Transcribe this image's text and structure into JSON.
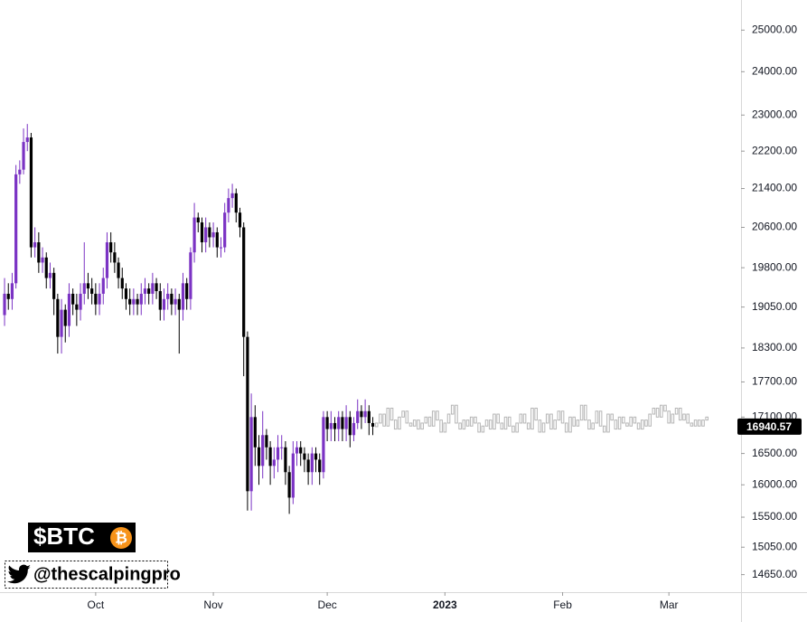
{
  "chart_data": {
    "type": "candlestick",
    "log": true,
    "up_color": "#7b33c4",
    "down_color": "#000000",
    "projection_color": "#b5b5b5",
    "ylim": [
      14400,
      25750
    ],
    "yticks": [
      {
        "value": 25000,
        "label": "25000.00"
      },
      {
        "value": 24000,
        "label": "24000.00"
      },
      {
        "value": 23000,
        "label": "23000.00"
      },
      {
        "value": 22200,
        "label": "22200.00"
      },
      {
        "value": 21400,
        "label": "21400.00"
      },
      {
        "value": 20600,
        "label": "20600.00"
      },
      {
        "value": 19800,
        "label": "19800.00"
      },
      {
        "value": 19050,
        "label": "19050.00"
      },
      {
        "value": 18300,
        "label": "18300.00"
      },
      {
        "value": 17700,
        "label": "17700.00"
      },
      {
        "value": 17100,
        "label": "17100.00"
      },
      {
        "value": 16500,
        "label": "16500.00"
      },
      {
        "value": 16000,
        "label": "16000.00"
      },
      {
        "value": 15500,
        "label": "15500.00"
      },
      {
        "value": 15050,
        "label": "15050.00"
      },
      {
        "value": 14650,
        "label": "14650.00"
      }
    ],
    "xlim": [
      -1.2,
      194
    ],
    "xticks": [
      {
        "value": 24,
        "label": "Oct"
      },
      {
        "value": 55,
        "label": "Nov"
      },
      {
        "value": 85,
        "label": "Dec"
      },
      {
        "value": 116,
        "label": "2023"
      },
      {
        "value": 147,
        "label": "Feb"
      },
      {
        "value": 175,
        "label": "Mar"
      }
    ],
    "open": [
      18900,
      19300,
      19200,
      19500,
      21700,
      21800,
      22400,
      22500,
      20200,
      20300,
      19900,
      20000,
      19600,
      19700,
      19200,
      18500,
      19000,
      18700,
      19300,
      19100,
      19000,
      19300,
      19500,
      19400,
      19300,
      19100,
      19300,
      19600,
      20300,
      20100,
      19900,
      19600,
      19400,
      19200,
      19100,
      19200,
      19100,
      19300,
      19400,
      19300,
      19500,
      19350,
      19000,
      19200,
      19300,
      19100,
      19200,
      19000,
      19500,
      19200,
      20100,
      20800,
      20700,
      20300,
      20600,
      20400,
      20500,
      20200,
      20200,
      20900,
      21200,
      21300,
      20900,
      20600,
      18500,
      15900,
      17100,
      16600,
      16300,
      16800,
      16600,
      16300,
      16400,
      16600,
      16600,
      16200,
      15800,
      16500,
      16600,
      16500,
      16400,
      16200,
      16500,
      16400,
      16200,
      17100,
      16900,
      17000,
      16900,
      17100,
      16900,
      17100,
      16800,
      17000,
      17200,
      17100,
      17200,
      17000
    ],
    "high": [
      19600,
      19500,
      19700,
      21900,
      22000,
      22700,
      22800,
      22600,
      20600,
      20500,
      20200,
      20100,
      19900,
      19800,
      19300,
      19200,
      19100,
      19500,
      19400,
      19300,
      19500,
      20300,
      19700,
      19600,
      19500,
      19500,
      19800,
      20500,
      20500,
      20300,
      20000,
      19800,
      19500,
      19400,
      19400,
      19300,
      19500,
      19600,
      19500,
      19700,
      19600,
      19500,
      19400,
      19500,
      19400,
      19400,
      19300,
      19700,
      19600,
      20200,
      21100,
      20900,
      20800,
      20800,
      20700,
      20700,
      20600,
      20400,
      21100,
      21400,
      21500,
      21400,
      21000,
      20700,
      18600,
      17500,
      17300,
      16800,
      17200,
      16900,
      16700,
      16600,
      16800,
      16800,
      16700,
      16300,
      16700,
      16700,
      16700,
      16600,
      16500,
      16600,
      16600,
      16500,
      17200,
      17200,
      17200,
      17100,
      17200,
      17200,
      17300,
      17200,
      17100,
      17400,
      17300,
      17400,
      17300,
      17100
    ],
    "low": [
      18700,
      19000,
      19000,
      19400,
      21500,
      21700,
      22200,
      20000,
      20000,
      19700,
      19700,
      19400,
      19400,
      18900,
      18200,
      18200,
      18400,
      18500,
      18900,
      18700,
      18800,
      19100,
      19200,
      19100,
      18900,
      18900,
      19100,
      19400,
      19900,
      19700,
      19400,
      19200,
      19000,
      18900,
      18900,
      18900,
      18900,
      19100,
      19100,
      19100,
      19200,
      18800,
      18800,
      19000,
      18900,
      18900,
      18200,
      18800,
      19000,
      19000,
      19900,
      20500,
      20100,
      20100,
      20200,
      20200,
      20000,
      20000,
      20100,
      20700,
      21000,
      20700,
      20400,
      17800,
      15600,
      15600,
      16300,
      16000,
      16100,
      16400,
      16000,
      16100,
      16200,
      16400,
      16000,
      15550,
      15700,
      16300,
      16300,
      16200,
      16000,
      16000,
      16200,
      16000,
      16100,
      16700,
      16700,
      16700,
      16700,
      16700,
      16700,
      16600,
      16700,
      16900,
      16900,
      17000,
      16800,
      16800
    ],
    "close": [
      19300,
      19200,
      19500,
      21700,
      21800,
      22400,
      22500,
      20200,
      20300,
      19900,
      20000,
      19600,
      19700,
      19200,
      18500,
      19000,
      18700,
      19300,
      19100,
      19000,
      19300,
      19500,
      19400,
      19300,
      19100,
      19300,
      19600,
      20300,
      20100,
      19900,
      19600,
      19400,
      19200,
      19100,
      19200,
      19100,
      19300,
      19400,
      19300,
      19500,
      19350,
      19000,
      19200,
      19300,
      19100,
      19200,
      19000,
      19500,
      19200,
      20100,
      20800,
      20700,
      20300,
      20600,
      20400,
      20500,
      20200,
      20200,
      20900,
      21200,
      21300,
      20900,
      20600,
      18500,
      15900,
      17100,
      16600,
      16300,
      16800,
      16600,
      16300,
      16400,
      16600,
      16600,
      16200,
      15800,
      16500,
      16600,
      16500,
      16400,
      16200,
      16500,
      16400,
      16200,
      17100,
      16900,
      17000,
      16900,
      17100,
      16900,
      17100,
      16800,
      17000,
      17200,
      17100,
      17200,
      17000,
      16940.57
    ],
    "projection": {
      "open": [
        16940,
        17000,
        17150,
        16950,
        17250,
        17050,
        16900,
        17100,
        17200,
        17000,
        16950,
        17050,
        16900,
        17000,
        17100,
        16950,
        17200,
        17050,
        16850,
        17000,
        17150,
        17300,
        17000,
        16900,
        17050,
        16950,
        17100,
        17000,
        16850,
        16950,
        17050,
        16900,
        17150,
        17000,
        16900,
        17100,
        16950,
        16850,
        17000,
        17150,
        17000,
        16900,
        17250,
        17050,
        16850,
        17000,
        17150,
        16900,
        17050,
        17200,
        17000,
        16850,
        17100,
        16950,
        17050,
        17300,
        17050,
        16900,
        17000,
        17200,
        16950,
        16850,
        17150,
        17050,
        16900,
        17100,
        17000,
        16950,
        17100,
        17000,
        16900,
        17050,
        16950,
        17150,
        17250,
        17100,
        17300,
        17200,
        17000,
        17150,
        17250,
        17050,
        17150,
        17000,
        16950,
        17050,
        16950,
        17050
      ],
      "close": [
        17000,
        17150,
        16950,
        17250,
        17050,
        16900,
        17100,
        17200,
        17000,
        16950,
        17050,
        16900,
        17000,
        17100,
        16950,
        17200,
        17050,
        16850,
        17000,
        17150,
        17300,
        17000,
        16900,
        17050,
        16950,
        17100,
        17000,
        16850,
        16950,
        17050,
        16900,
        17150,
        17000,
        16900,
        17100,
        16950,
        16850,
        17000,
        17150,
        17000,
        16900,
        17250,
        17050,
        16850,
        17000,
        17150,
        16900,
        17050,
        17200,
        17000,
        16850,
        17100,
        16950,
        17050,
        17300,
        17050,
        16900,
        17000,
        17200,
        16950,
        16850,
        17150,
        17050,
        16900,
        17100,
        17000,
        16950,
        17100,
        17000,
        16900,
        17050,
        16950,
        17150,
        17250,
        17100,
        17300,
        17200,
        17000,
        17150,
        17250,
        17050,
        17150,
        17000,
        16950,
        17050,
        16950,
        17050,
        17100
      ]
    },
    "watermark": {
      "ticker": "$BTC",
      "icon": "₿",
      "handle": "@thescalpingpro"
    }
  }
}
